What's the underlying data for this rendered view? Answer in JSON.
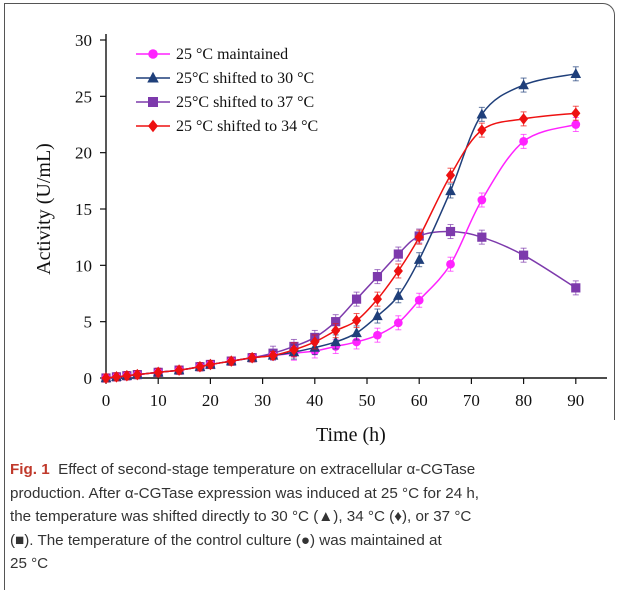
{
  "chart_data": {
    "type": "line",
    "xlabel": "Time (h)",
    "ylabel": "Activity (U/mL)",
    "xlim": [
      0,
      95
    ],
    "ylim": [
      0,
      30
    ],
    "xticks": [
      0,
      10,
      20,
      30,
      40,
      50,
      60,
      70,
      80,
      90
    ],
    "yticks": [
      0,
      5,
      10,
      15,
      20,
      25,
      30
    ],
    "xtick_labels": [
      "0",
      "10",
      "20",
      "30",
      "40",
      "50",
      "60",
      "70",
      "80",
      "90"
    ],
    "ytick_labels": [
      "0",
      "5",
      "10",
      "15",
      "20",
      "25",
      "30"
    ],
    "legend_position": "top-left",
    "grid": false,
    "series": [
      {
        "name": "25 °C maintained",
        "color": "#ff22ff",
        "marker": "circle",
        "x": [
          0,
          2,
          4,
          6,
          10,
          14,
          18,
          20,
          24,
          28,
          32,
          36,
          40,
          44,
          48,
          52,
          56,
          60,
          66,
          72,
          80,
          90
        ],
        "y": [
          0,
          0.1,
          0.2,
          0.3,
          0.5,
          0.7,
          1.0,
          1.2,
          1.5,
          1.8,
          2.0,
          2.2,
          2.4,
          2.8,
          3.2,
          3.8,
          4.9,
          6.9,
          10.1,
          15.8,
          21.0,
          22.5
        ]
      },
      {
        "name": "25°C shifted to 30 °C",
        "color": "#1f3f7a",
        "marker": "triangle",
        "x": [
          0,
          2,
          4,
          6,
          10,
          14,
          18,
          20,
          24,
          28,
          32,
          36,
          40,
          44,
          48,
          52,
          56,
          60,
          66,
          72,
          80,
          90
        ],
        "y": [
          0,
          0.1,
          0.2,
          0.3,
          0.5,
          0.7,
          1.0,
          1.2,
          1.5,
          1.8,
          2.0,
          2.3,
          2.7,
          3.2,
          4.0,
          5.5,
          7.3,
          10.5,
          16.6,
          23.4,
          26.0,
          27.0
        ]
      },
      {
        "name": "25°C shifted to 37 °C",
        "color": "#7d3aac",
        "marker": "square",
        "x": [
          0,
          2,
          4,
          6,
          10,
          14,
          18,
          20,
          24,
          28,
          32,
          36,
          40,
          44,
          48,
          52,
          56,
          60,
          66,
          72,
          80,
          90
        ],
        "y": [
          0,
          0.1,
          0.2,
          0.3,
          0.5,
          0.7,
          1.0,
          1.2,
          1.5,
          1.8,
          2.2,
          2.8,
          3.6,
          5.0,
          7.0,
          9.0,
          11.0,
          12.6,
          13.0,
          12.5,
          10.9,
          8.0
        ]
      },
      {
        "name": "25 °C shifted to 34 °C",
        "color": "#ee1111",
        "marker": "diamond",
        "x": [
          0,
          2,
          4,
          6,
          10,
          14,
          18,
          20,
          24,
          28,
          32,
          36,
          40,
          44,
          48,
          52,
          56,
          60,
          66,
          72,
          80,
          90
        ],
        "y": [
          0,
          0.1,
          0.2,
          0.3,
          0.5,
          0.7,
          1.0,
          1.2,
          1.5,
          1.8,
          2.0,
          2.5,
          3.2,
          4.2,
          5.1,
          7.0,
          9.5,
          12.5,
          18.0,
          22.0,
          23.0,
          23.5
        ]
      }
    ]
  },
  "caption": {
    "label": "Fig. 1",
    "lines": [
      "Effect of second-stage temperature on extracellular α-CGTase",
      "production. After α-CGTase expression was induced at 25 °C for 24 h,",
      "the temperature was shifted directly to 30 °C (▲), 34 °C (♦), or 37 °C",
      "(■). The temperature of the control culture (●) was maintained at",
      "25 °C"
    ]
  }
}
